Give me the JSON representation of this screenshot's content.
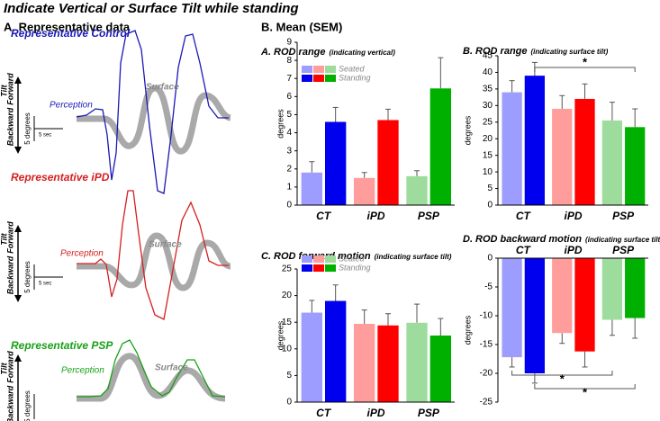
{
  "title": "Indicate Vertical or Surface Tilt while standing",
  "left": {
    "heading": "A. Representative data",
    "axis": {
      "tilt": "Tilt",
      "backward": "Backward",
      "forward": "Forward",
      "degrees": "5 degrees"
    },
    "panels": [
      {
        "label": "Representative Control",
        "perception": "Perception",
        "surface": "Surface",
        "color": "#1a1ab8",
        "time_scale": "5 sec"
      },
      {
        "label": "Representative iPD",
        "perception": "Perception",
        "surface": "Surface",
        "color": "#d42020",
        "time_scale": "5 sec"
      },
      {
        "label": "Representative PSP",
        "perception": "Perception",
        "surface": "Surface",
        "color": "#18a018"
      }
    ]
  },
  "right_heading": "B. Mean (SEM)",
  "chart_data": [
    {
      "type": "bar",
      "title": "A. ROD range",
      "subtitle": "(indicating vertical)",
      "ylabel": "degrees",
      "categories": [
        "CT",
        "iPD",
        "PSP"
      ],
      "ylim": [
        0,
        9
      ],
      "yticks": [
        0,
        1,
        2,
        3,
        4,
        5,
        6,
        7,
        8,
        9
      ],
      "legend": "upper left",
      "series": [
        {
          "name": "Seated",
          "colors": [
            "#9d9dff",
            "#ff9d9d",
            "#9ddc9d"
          ],
          "values": [
            1.8,
            1.5,
            1.6
          ],
          "errors": [
            0.6,
            0.3,
            0.3
          ]
        },
        {
          "name": "Standing",
          "colors": [
            "#0000ee",
            "#ff0000",
            "#00b000"
          ],
          "values": [
            4.6,
            4.7,
            6.45
          ],
          "errors": [
            0.8,
            0.6,
            1.7
          ]
        }
      ]
    },
    {
      "type": "bar",
      "title": "B. ROD range",
      "subtitle": "(indicating surface tilt)",
      "ylabel": "degrees",
      "categories": [
        "CT",
        "iPD",
        "PSP"
      ],
      "ylim": [
        0,
        45
      ],
      "yticks": [
        0,
        5,
        10,
        15,
        20,
        25,
        30,
        35,
        40,
        45
      ],
      "annotations": [
        "*"
      ],
      "series": [
        {
          "name": "Seated",
          "colors": [
            "#9d9dff",
            "#ff9d9d",
            "#9ddc9d"
          ],
          "values": [
            34,
            29,
            25.5
          ],
          "errors": [
            3.5,
            4,
            5.5
          ]
        },
        {
          "name": "Standing",
          "colors": [
            "#0000ee",
            "#ff0000",
            "#00b000"
          ],
          "values": [
            39,
            32,
            23.5
          ],
          "errors": [
            4,
            4.5,
            5.5
          ]
        }
      ]
    },
    {
      "type": "bar",
      "title": "C. ROD forward motion",
      "subtitle": "(indicating surface tilt)",
      "ylabel": "degrees",
      "categories": [
        "CT",
        "iPD",
        "PSP"
      ],
      "ylim": [
        0,
        25
      ],
      "yticks": [
        0,
        5,
        10,
        15,
        20,
        25
      ],
      "legend": "upper left",
      "series": [
        {
          "name": "Seated",
          "colors": [
            "#9d9dff",
            "#ff9d9d",
            "#9ddc9d"
          ],
          "values": [
            16.8,
            14.7,
            14.9
          ],
          "errors": [
            2.3,
            2.6,
            3.5
          ]
        },
        {
          "name": "Standing",
          "colors": [
            "#0000ee",
            "#ff0000",
            "#00b000"
          ],
          "values": [
            19,
            14.4,
            12.5
          ],
          "errors": [
            3,
            2.2,
            3.2
          ]
        }
      ]
    },
    {
      "type": "bar",
      "title": "D. ROD backward motion",
      "subtitle": "(indicating surface tilt)",
      "ylabel": "degrees",
      "categories": [
        "CT",
        "iPD",
        "PSP"
      ],
      "ylim": [
        -25,
        0
      ],
      "yticks": [
        0,
        -5,
        -10,
        -15,
        -20,
        -25
      ],
      "annotations": [
        "*",
        "*"
      ],
      "series": [
        {
          "name": "Seated",
          "colors": [
            "#9d9dff",
            "#ff9d9d",
            "#9ddc9d"
          ],
          "values": [
            -17.2,
            -13,
            -10.7
          ],
          "errors": [
            1.7,
            1.8,
            2.7
          ]
        },
        {
          "name": "Standing",
          "colors": [
            "#0000ee",
            "#ff0000",
            "#00b000"
          ],
          "values": [
            -20,
            -16.2,
            -10.4
          ],
          "errors": [
            1.7,
            2.7,
            3.5
          ]
        }
      ]
    }
  ]
}
